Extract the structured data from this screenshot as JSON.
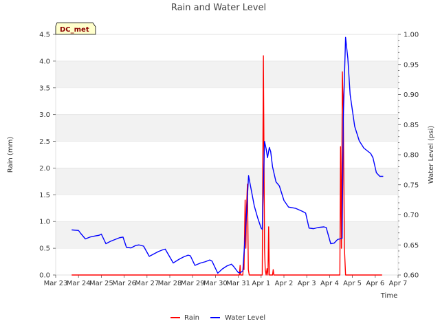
{
  "chart_data": {
    "type": "line",
    "title": "Rain and Water Level",
    "xlabel": "Time",
    "ylabel_left": "Rain (mm)",
    "ylabel_right": "Water Level (psi)",
    "badge": "DC_met",
    "x_range_days": [
      0,
      15
    ],
    "x_ticks": [
      {
        "day": 0,
        "label": "Mar 23"
      },
      {
        "day": 1,
        "label": "Mar 24"
      },
      {
        "day": 2,
        "label": "Mar 25"
      },
      {
        "day": 3,
        "label": "Mar 26"
      },
      {
        "day": 4,
        "label": "Mar 27"
      },
      {
        "day": 5,
        "label": "Mar 28"
      },
      {
        "day": 6,
        "label": "Mar 29"
      },
      {
        "day": 7,
        "label": "Mar 30"
      },
      {
        "day": 8,
        "label": "Mar 31"
      },
      {
        "day": 9,
        "label": "Apr 1"
      },
      {
        "day": 10,
        "label": "Apr 2"
      },
      {
        "day": 11,
        "label": "Apr 3"
      },
      {
        "day": 12,
        "label": "Apr 4"
      },
      {
        "day": 13,
        "label": "Apr 5"
      },
      {
        "day": 14,
        "label": "Apr 6"
      },
      {
        "day": 15,
        "label": "Apr 7"
      }
    ],
    "ylim_left": [
      0,
      4.5
    ],
    "y_ticks_left": [
      "0.0",
      "0.5",
      "1.0",
      "1.5",
      "2.0",
      "2.5",
      "3.0",
      "3.5",
      "4.0",
      "4.5"
    ],
    "ylim_right": [
      0.6,
      1.0
    ],
    "y_ticks_right": [
      "0.60",
      "0.65",
      "0.70",
      "0.75",
      "0.80",
      "0.85",
      "0.90",
      "0.95",
      "1.00"
    ],
    "grid": "horizontal bands",
    "legend_position": "bottom-center",
    "series": [
      {
        "name": "Rain",
        "color": "#ff0000",
        "axis": "left",
        "points": [
          [
            0.7,
            0
          ],
          [
            8.05,
            0
          ],
          [
            8.08,
            0.18
          ],
          [
            8.1,
            0
          ],
          [
            8.2,
            0
          ],
          [
            8.22,
            0.2
          ],
          [
            8.25,
            0.1
          ],
          [
            8.3,
            1.4
          ],
          [
            8.33,
            0.5
          ],
          [
            8.36,
            1.25
          ],
          [
            8.4,
            1.7
          ],
          [
            8.44,
            0.1
          ],
          [
            8.48,
            0
          ],
          [
            9.05,
            0
          ],
          [
            9.1,
            4.1
          ],
          [
            9.15,
            0.5
          ],
          [
            9.18,
            0.1
          ],
          [
            9.22,
            0
          ],
          [
            9.26,
            0.12
          ],
          [
            9.3,
            0
          ],
          [
            9.33,
            0.9
          ],
          [
            9.36,
            0
          ],
          [
            9.5,
            0
          ],
          [
            9.53,
            0.1
          ],
          [
            9.56,
            0
          ],
          [
            12.45,
            0
          ],
          [
            12.48,
            2.4
          ],
          [
            12.52,
            0.5
          ],
          [
            12.56,
            3.8
          ],
          [
            12.6,
            3.1
          ],
          [
            12.65,
            0.5
          ],
          [
            12.7,
            0
          ],
          [
            14.3,
            0
          ]
        ]
      },
      {
        "name": "Water Level",
        "color": "#0000ff",
        "axis": "right",
        "points": [
          [
            0.7,
            0.675
          ],
          [
            1.0,
            0.674
          ],
          [
            1.1,
            0.669
          ],
          [
            1.3,
            0.66
          ],
          [
            1.5,
            0.663
          ],
          [
            1.75,
            0.665
          ],
          [
            1.9,
            0.666
          ],
          [
            2.0,
            0.668
          ],
          [
            2.2,
            0.652
          ],
          [
            2.4,
            0.656
          ],
          [
            2.6,
            0.659
          ],
          [
            2.8,
            0.662
          ],
          [
            2.95,
            0.663
          ],
          [
            3.1,
            0.646
          ],
          [
            3.3,
            0.645
          ],
          [
            3.5,
            0.649
          ],
          [
            3.65,
            0.65
          ],
          [
            3.85,
            0.648
          ],
          [
            4.1,
            0.631
          ],
          [
            4.3,
            0.635
          ],
          [
            4.5,
            0.639
          ],
          [
            4.7,
            0.642
          ],
          [
            4.8,
            0.643
          ],
          [
            5.15,
            0.62
          ],
          [
            5.4,
            0.626
          ],
          [
            5.6,
            0.63
          ],
          [
            5.8,
            0.633
          ],
          [
            5.9,
            0.632
          ],
          [
            6.1,
            0.616
          ],
          [
            6.35,
            0.62
          ],
          [
            6.55,
            0.622
          ],
          [
            6.75,
            0.625
          ],
          [
            6.85,
            0.623
          ],
          [
            7.1,
            0.603
          ],
          [
            7.3,
            0.61
          ],
          [
            7.5,
            0.615
          ],
          [
            7.7,
            0.618
          ],
          [
            7.8,
            0.614
          ],
          [
            8.0,
            0.604
          ],
          [
            8.1,
            0.604
          ],
          [
            8.2,
            0.607
          ],
          [
            8.35,
            0.695
          ],
          [
            8.45,
            0.765
          ],
          [
            8.55,
            0.745
          ],
          [
            8.7,
            0.715
          ],
          [
            8.85,
            0.695
          ],
          [
            9.0,
            0.678
          ],
          [
            9.05,
            0.676
          ],
          [
            9.15,
            0.822
          ],
          [
            9.22,
            0.81
          ],
          [
            9.28,
            0.795
          ],
          [
            9.36,
            0.812
          ],
          [
            9.42,
            0.805
          ],
          [
            9.5,
            0.78
          ],
          [
            9.65,
            0.755
          ],
          [
            9.8,
            0.748
          ],
          [
            10.0,
            0.724
          ],
          [
            10.2,
            0.713
          ],
          [
            10.5,
            0.711
          ],
          [
            10.8,
            0.706
          ],
          [
            10.95,
            0.703
          ],
          [
            11.1,
            0.678
          ],
          [
            11.3,
            0.677
          ],
          [
            11.5,
            0.679
          ],
          [
            11.75,
            0.68
          ],
          [
            11.85,
            0.679
          ],
          [
            12.05,
            0.652
          ],
          [
            12.2,
            0.653
          ],
          [
            12.35,
            0.659
          ],
          [
            12.55,
            0.661
          ],
          [
            12.6,
            0.86
          ],
          [
            12.7,
            0.995
          ],
          [
            12.8,
            0.96
          ],
          [
            12.9,
            0.9
          ],
          [
            13.1,
            0.847
          ],
          [
            13.3,
            0.823
          ],
          [
            13.5,
            0.811
          ],
          [
            13.8,
            0.802
          ],
          [
            13.9,
            0.795
          ],
          [
            14.05,
            0.77
          ],
          [
            14.2,
            0.764
          ],
          [
            14.35,
            0.764
          ]
        ]
      }
    ]
  }
}
